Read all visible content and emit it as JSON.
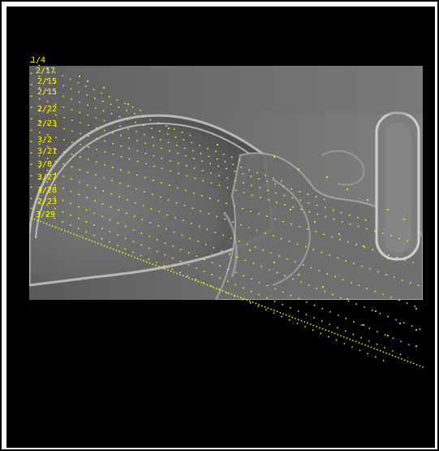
{
  "image": {
    "description_icon": "skull-xray-icon",
    "overlay_color": "#ffff00",
    "background_color": "#000000"
  },
  "labels": [
    "1/4",
    "2/17",
    "2/15",
    "2/15",
    "2/22",
    "2/23",
    "3/2",
    "3/21",
    "3/8",
    "3/27",
    "3/28",
    "2/23",
    "3/29"
  ]
}
